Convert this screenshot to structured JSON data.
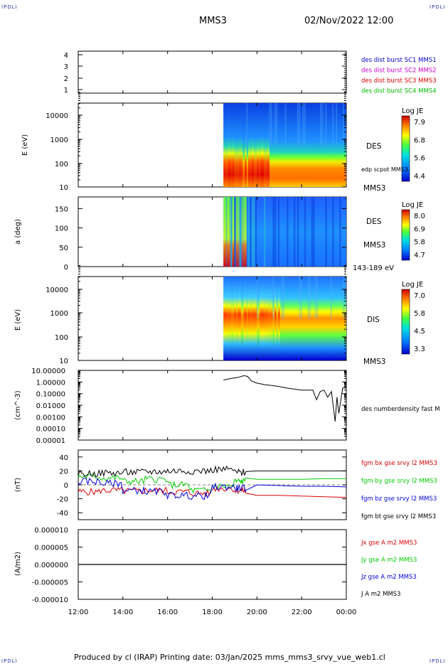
{
  "header": {
    "corner_tl": "IPDLI",
    "corner_tr": "IPDLI",
    "corner_bl": "IPDLI",
    "corner_br": "IPDLI",
    "spacecraft": "MMS3",
    "datetime": "02/Nov/2022 12:00"
  },
  "footer": {
    "text": "Produced by cl (IRAP)   Printing date: 03/Jan/2025   mms_mms3_srvy_vue_web1.cl"
  },
  "colors": {
    "mms1": "#0000cc",
    "mms2": "#cc00cc",
    "mms3": "#dd0000",
    "mms4": "#00bb00",
    "bx": "#dd0000",
    "by": "#00cc00",
    "bz": "#0000dd",
    "bt": "#000000"
  },
  "chart_data": [
    {
      "type": "line",
      "panel": "availability",
      "y_ticks": [
        "4",
        "3",
        "2",
        "1"
      ],
      "ylim": [
        0.5,
        4.5
      ],
      "legend": [
        "des dist burst SC1 MMS1",
        "des dist burst SC2 MMS2",
        "des dist burst SC3 MMS3",
        "des dist burst SC4 MMS4"
      ]
    },
    {
      "type": "heatmap",
      "panel": "des-energy",
      "ylabel": "E (eV)",
      "y_scale": "log",
      "y_ticks": [
        "10000",
        "1000",
        "100",
        "10"
      ],
      "data_start": "18:30",
      "label_species": "DES",
      "label_pot": "edp scpot MMS3",
      "label_sc": "MMS3",
      "colorbar": {
        "title": "Log JE",
        "ticks": [
          "7.9",
          "6.8",
          "5.6",
          "4.4"
        ],
        "range": [
          4.4,
          7.9
        ]
      }
    },
    {
      "type": "heatmap",
      "panel": "des-pitch",
      "ylabel": "a (deg)",
      "y_ticks": [
        "150",
        "100",
        "50",
        "0"
      ],
      "ylim": [
        0,
        180
      ],
      "data_start": "18:30",
      "label_species": "DES",
      "label_sc": "MMS3",
      "energy_range": "143-189 eV",
      "colorbar": {
        "title": "Log JE",
        "ticks": [
          "8.0",
          "6.9",
          "5.8",
          "4.7"
        ],
        "range": [
          4.7,
          8.0
        ]
      }
    },
    {
      "type": "heatmap",
      "panel": "dis-energy",
      "ylabel": "E (eV)",
      "y_scale": "log",
      "y_ticks": [
        "10000",
        "1000",
        "100",
        "10"
      ],
      "data_start": "18:30",
      "label_species": "DIS",
      "label_sc": "MMS3",
      "colorbar": {
        "title": "Log JE",
        "ticks": [
          "7.0",
          "5.8",
          "4.5",
          "3.3"
        ],
        "range": [
          3.3,
          7.0
        ]
      }
    },
    {
      "type": "line",
      "panel": "density",
      "ylabel": "(cm^-3)",
      "y_scale": "log",
      "y_ticks": [
        "10.00000",
        "1.00000",
        "0.10000",
        "0.01000",
        "0.00100",
        "0.00010",
        "0.00001"
      ],
      "legend": [
        "des numberdensity fast M"
      ],
      "x": [
        "18:30",
        "18:50",
        "19:10",
        "19:25",
        "19:35",
        "19:45",
        "20:00",
        "20:20",
        "20:40",
        "21:00",
        "21:20",
        "21:40",
        "22:00",
        "22:30",
        "22:40",
        "22:50",
        "23:00",
        "23:10",
        "23:20",
        "23:30",
        "23:35",
        "23:40",
        "23:50",
        "00:00"
      ],
      "values": [
        1.5,
        2.0,
        2.5,
        3.5,
        3.0,
        1.2,
        0.8,
        0.6,
        0.5,
        0.4,
        0.3,
        0.25,
        0.2,
        0.2,
        0.03,
        0.15,
        0.2,
        0.05,
        0.15,
        0.0004,
        0.05,
        0.002,
        0.3,
        0.4
      ]
    },
    {
      "type": "line",
      "panel": "magnetic-field",
      "ylabel": "(nT)",
      "y_ticks": [
        "40",
        "20",
        "0",
        "-20",
        "-40"
      ],
      "ylim": [
        -50,
        50
      ],
      "x": [
        "12:00",
        "13:00",
        "14:00",
        "15:00",
        "16:00",
        "17:00",
        "18:00",
        "19:00",
        "19:30",
        "20:00",
        "21:00",
        "22:00",
        "23:00",
        "00:00"
      ],
      "series": [
        {
          "name": "fgm bx gse srvy l2 MMS3",
          "values": [
            -10,
            -8,
            -9,
            -8,
            -10,
            -12,
            -5,
            -8,
            -12,
            -15,
            -15,
            -16,
            -17,
            -18
          ]
        },
        {
          "name": "fgm by gse srvy l2 MMS3",
          "values": [
            12,
            10,
            5,
            8,
            0,
            -8,
            -2,
            5,
            10,
            8,
            8,
            8,
            9,
            9
          ]
        },
        {
          "name": "fgm bz gse srvy l2 MMS3",
          "values": [
            5,
            2,
            -8,
            -10,
            -15,
            -16,
            -3,
            -5,
            -8,
            0,
            -1,
            -2,
            -2,
            -3
          ]
        },
        {
          "name": "fgm bt gse srvy l2 MMS3",
          "values": [
            16,
            17,
            18,
            19,
            20,
            20,
            22,
            18,
            19,
            20,
            20,
            20,
            20,
            20
          ]
        }
      ]
    },
    {
      "type": "line",
      "panel": "current-density",
      "ylabel": "(A/m2)",
      "y_ticks": [
        "0.000010",
        "0.000005",
        "0.000000",
        "-0.000005",
        "-0.000010"
      ],
      "ylim": [
        -1e-05,
        1e-05
      ],
      "x_ticks": [
        "12:00",
        "14:00",
        "16:00",
        "18:00",
        "20:00",
        "22:00",
        "00:00"
      ],
      "series": [
        {
          "name": "Jx gse A m2 MMS3"
        },
        {
          "name": "Jy gse A m2 MMS3"
        },
        {
          "name": "Jz gse A m2 MMS3"
        },
        {
          "name": "J A m2 MMS3",
          "values": [
            0,
            0,
            0,
            0,
            0,
            0,
            0
          ]
        }
      ]
    }
  ]
}
